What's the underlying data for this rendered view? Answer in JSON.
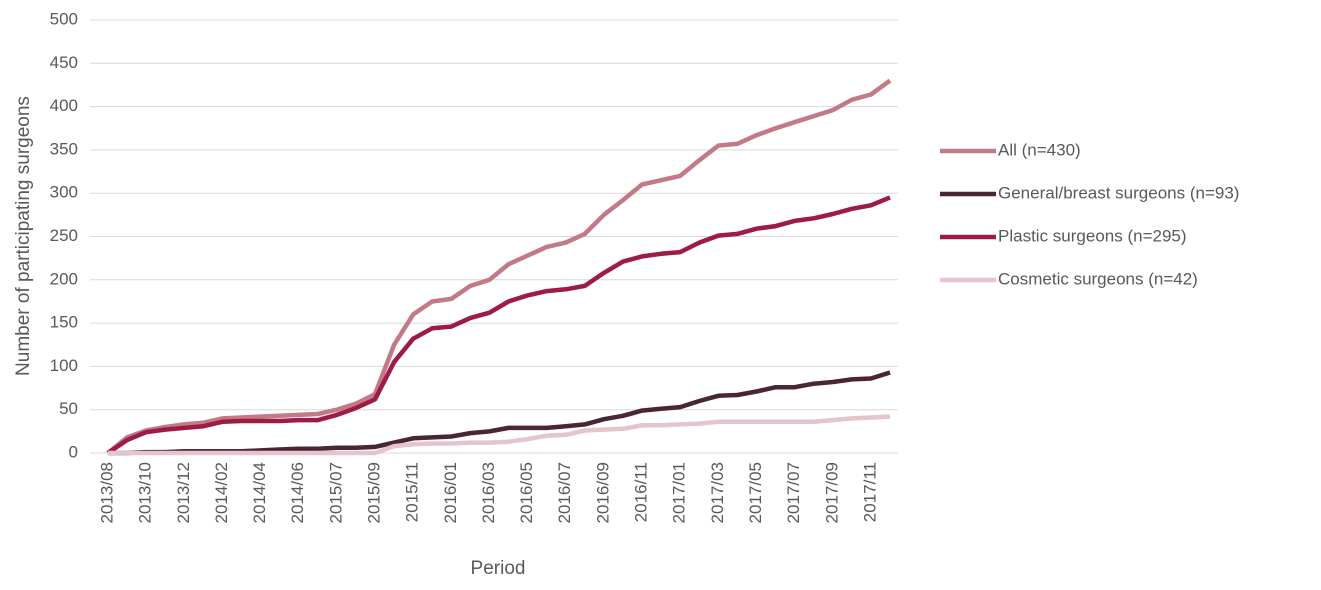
{
  "chart_data": {
    "type": "line",
    "x_label": "Period",
    "y_label": "Number of participating surgeons",
    "categories": [
      "2013/08",
      null,
      "2013/10",
      null,
      "2013/12",
      null,
      "2014/02",
      null,
      "2014/04",
      null,
      "2014/06",
      null,
      "2015/07",
      null,
      "2015/09",
      null,
      "2015/11",
      null,
      "2016/01",
      null,
      "2016/03",
      null,
      "2016/05",
      null,
      "2016/07",
      null,
      "2016/09",
      null,
      "2016/11",
      null,
      "2017/01",
      null,
      "2017/03",
      null,
      "2017/05",
      null,
      "2017/07",
      null,
      "2017/09",
      null,
      "2017/11",
      null
    ],
    "series": [
      {
        "name": "All (n=430)",
        "color": "#c27a86",
        "values": [
          0,
          18,
          26,
          30,
          33,
          35,
          40,
          41,
          42,
          43,
          44,
          45,
          50,
          57,
          68,
          125,
          160,
          175,
          178,
          193,
          200,
          218,
          228,
          238,
          243,
          253,
          275,
          292,
          310,
          315,
          320,
          338,
          355,
          357,
          367,
          375,
          382,
          389,
          396,
          408,
          414,
          430
        ]
      },
      {
        "name": "General/breast surgeons (n=93)",
        "color": "#4a2533",
        "values": [
          0,
          0,
          1,
          1,
          2,
          2,
          2,
          2,
          3,
          4,
          5,
          5,
          6,
          6,
          7,
          12,
          17,
          18,
          19,
          23,
          25,
          29,
          29,
          29,
          31,
          33,
          39,
          43,
          49,
          51,
          53,
          60,
          66,
          67,
          71,
          76,
          76,
          80,
          82,
          85,
          86,
          93
        ]
      },
      {
        "name": "Plastic surgeons (n=295)",
        "color": "#9e1a47",
        "values": [
          0,
          15,
          24,
          27,
          29,
          31,
          36,
          37,
          37,
          37,
          38,
          38,
          44,
          52,
          62,
          105,
          132,
          144,
          146,
          156,
          162,
          175,
          182,
          187,
          189,
          193,
          208,
          221,
          227,
          230,
          232,
          243,
          251,
          253,
          259,
          262,
          268,
          271,
          276,
          282,
          286,
          295
        ]
      },
      {
        "name": "Cosmetic surgeons (n=42)",
        "color": "#e5c5ca",
        "values": [
          0,
          0,
          0,
          0,
          0,
          0,
          0,
          0,
          0,
          0,
          0,
          0,
          0,
          0,
          0,
          8,
          10,
          11,
          11,
          12,
          12,
          13,
          16,
          20,
          21,
          26,
          27,
          28,
          32,
          32,
          33,
          34,
          36,
          36,
          36,
          36,
          36,
          36,
          38,
          40,
          41,
          42
        ]
      }
    ],
    "ylim": [
      0,
      500
    ],
    "yticks": [
      0,
      50,
      100,
      150,
      200,
      250,
      300,
      350,
      400,
      450,
      500
    ],
    "grid": true,
    "legend": "right"
  }
}
